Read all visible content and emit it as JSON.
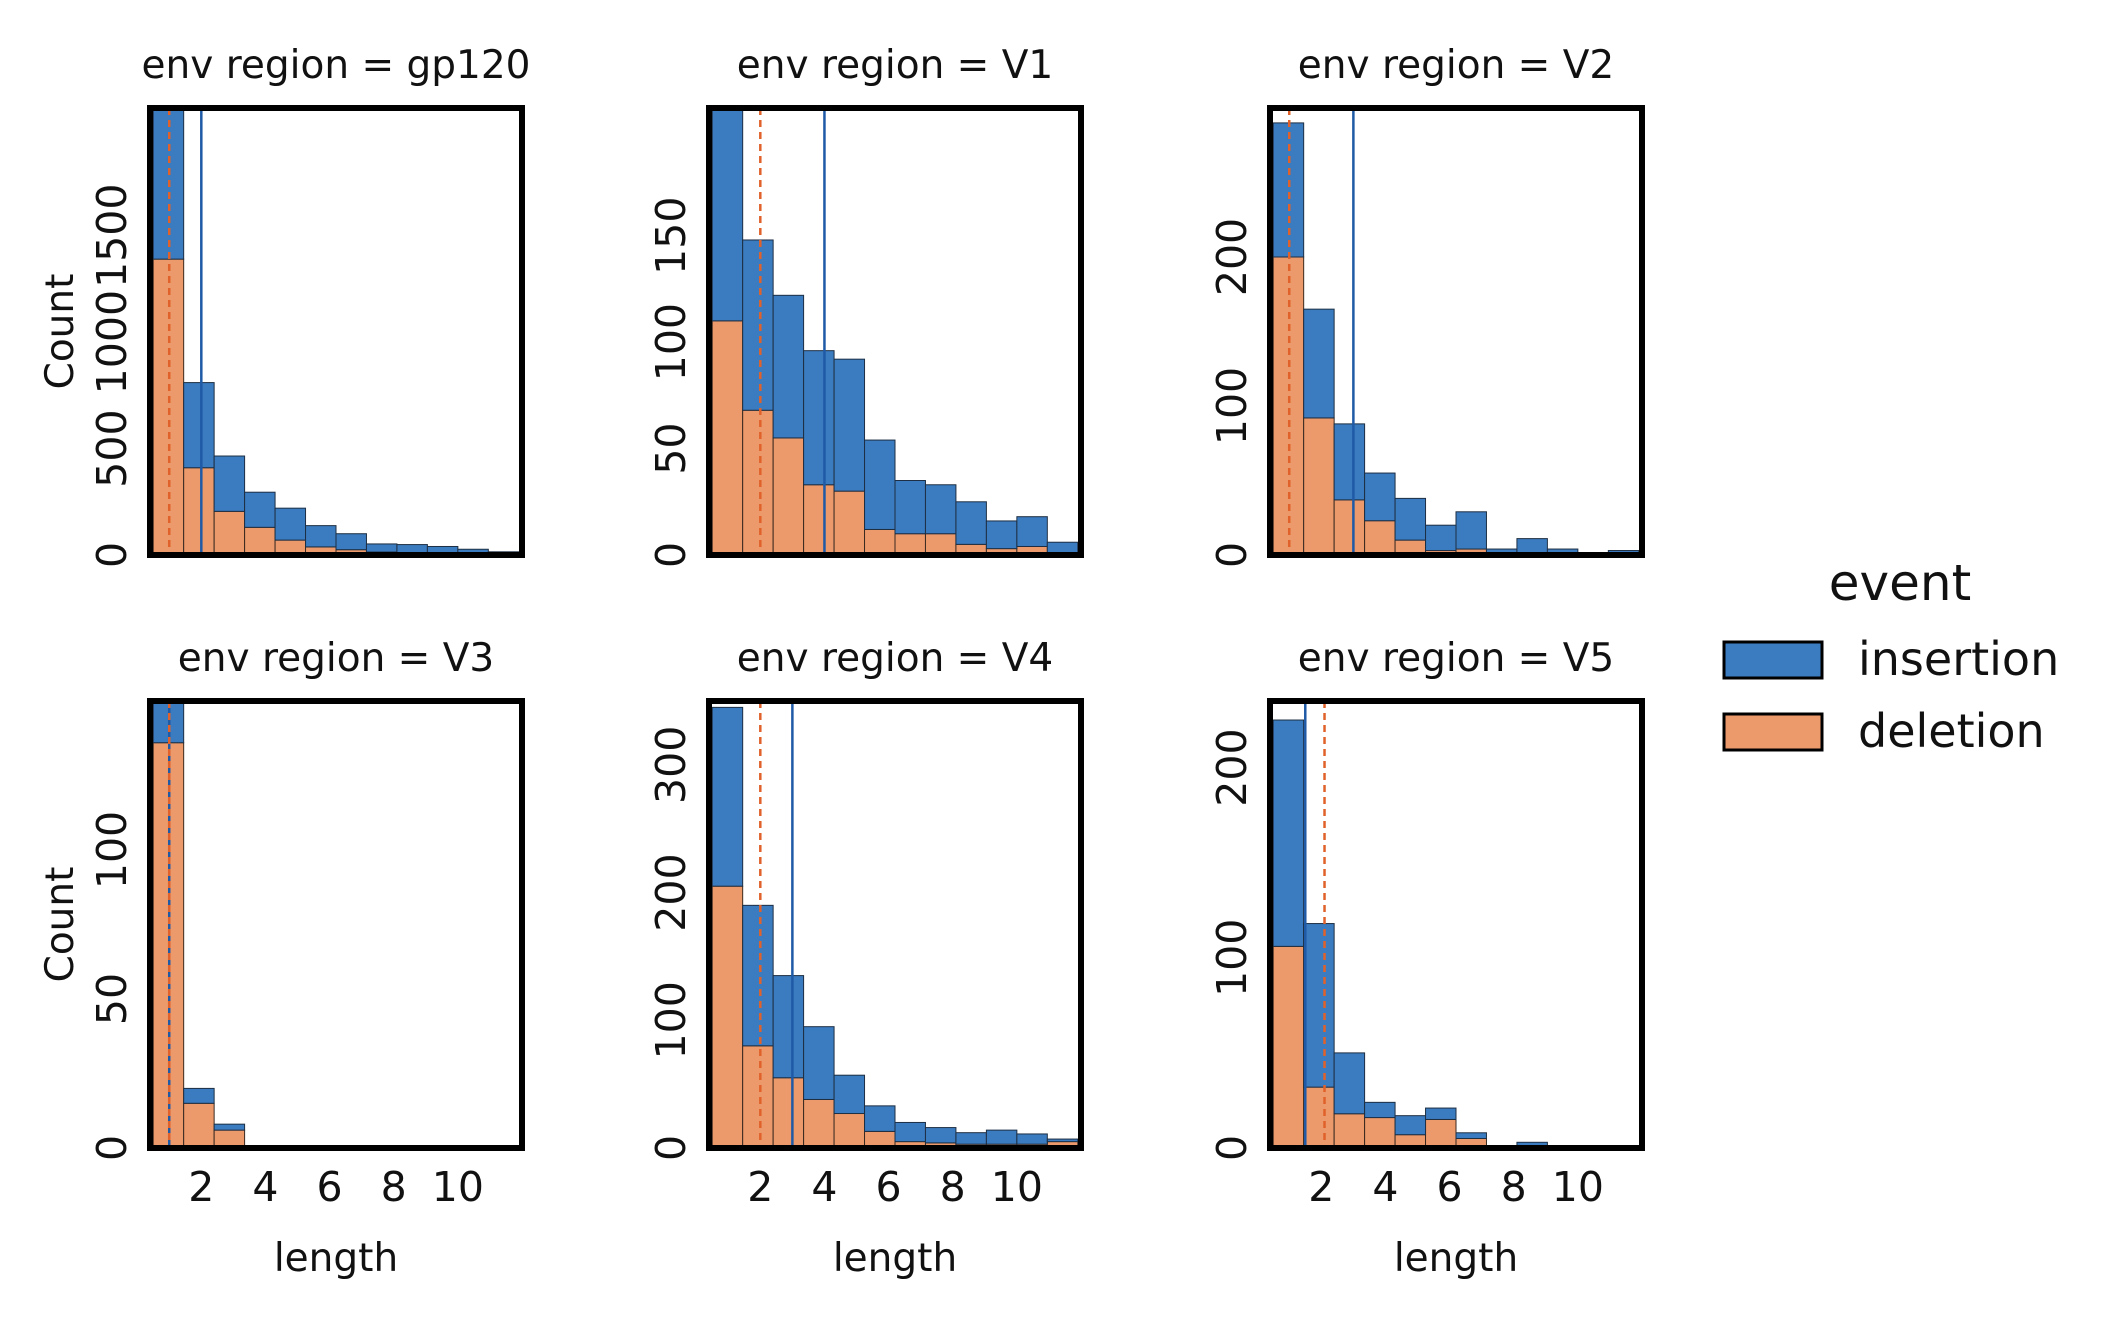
{
  "colors": {
    "insertion": "#3b7bbf",
    "deletion": "#ec9a6c",
    "insertion_line": "#1f5aa6",
    "deletion_line": "#e0622a",
    "frame": "#000000"
  },
  "legend": {
    "title": "event",
    "items": [
      {
        "label": "insertion",
        "color_key": "insertion"
      },
      {
        "label": "deletion",
        "color_key": "deletion"
      }
    ],
    "placement": "right"
  },
  "chart_data": [
    {
      "type": "bar",
      "stacking": "stacked-histogram",
      "title": "env region = gp120",
      "xlabel": "",
      "ylabel": "Count",
      "xlim": [
        0.4,
        12.0
      ],
      "ylim": [
        0,
        2100
      ],
      "xticks": [],
      "yticks": [
        0,
        500,
        1000,
        1500
      ],
      "bin_edges": [
        0.5,
        1.45,
        2.4,
        3.35,
        4.3,
        5.25,
        6.2,
        7.15,
        8.1,
        9.05,
        10.0,
        10.95,
        11.9
      ],
      "series": [
        {
          "name": "deletion",
          "values": [
            1390,
            410,
            205,
            130,
            70,
            38,
            25,
            14,
            9,
            6,
            3,
            2
          ]
        },
        {
          "name": "insertion",
          "values": [
            710,
            400,
            260,
            165,
            150,
            100,
            75,
            38,
            40,
            34,
            24,
            13
          ]
        }
      ],
      "median_lines": {
        "insertion": 2.0,
        "deletion": 1.0
      }
    },
    {
      "type": "bar",
      "stacking": "stacked-histogram",
      "title": "env region = V1",
      "xlabel": "",
      "ylabel": "",
      "xlim": [
        0.4,
        12.0
      ],
      "ylim": [
        0,
        210
      ],
      "xticks": [],
      "yticks": [
        0,
        50,
        100,
        150
      ],
      "bin_edges": [
        0.5,
        1.45,
        2.4,
        3.35,
        4.3,
        5.25,
        6.2,
        7.15,
        8.1,
        9.05,
        10.0,
        10.95,
        11.9
      ],
      "series": [
        {
          "name": "deletion",
          "values": [
            110,
            68,
            55,
            33,
            30,
            12,
            10,
            10,
            5,
            3,
            4,
            1
          ]
        },
        {
          "name": "insertion",
          "values": [
            100,
            80,
            67,
            63,
            62,
            42,
            25,
            23,
            20,
            13,
            14,
            5
          ]
        }
      ],
      "median_lines": {
        "insertion": 4.0,
        "deletion": 2.0
      }
    },
    {
      "type": "bar",
      "stacking": "stacked-histogram",
      "title": "env region = V2",
      "xlabel": "",
      "ylabel": "",
      "xlim": [
        0.4,
        12.0
      ],
      "ylim": [
        0,
        300
      ],
      "xticks": [],
      "yticks": [
        0,
        100,
        200
      ],
      "bin_edges": [
        0.5,
        1.45,
        2.4,
        3.35,
        4.3,
        5.25,
        6.2,
        7.15,
        8.1,
        9.05,
        10.0,
        10.95,
        11.9
      ],
      "series": [
        {
          "name": "deletion",
          "values": [
            200,
            92,
            37,
            23,
            10,
            3,
            4,
            1,
            1,
            0,
            1,
            0
          ]
        },
        {
          "name": "insertion",
          "values": [
            90,
            73,
            51,
            32,
            28,
            17,
            25,
            3,
            10,
            4,
            0,
            3
          ]
        }
      ],
      "median_lines": {
        "insertion": 3.0,
        "deletion": 1.0
      }
    },
    {
      "type": "bar",
      "stacking": "stacked-histogram",
      "title": "env region = V3",
      "xlabel": "length",
      "ylabel": "Count",
      "xlim": [
        0.4,
        12.0
      ],
      "ylim": [
        0,
        150
      ],
      "xticks": [
        2,
        4,
        6,
        8,
        10
      ],
      "yticks": [
        0,
        50,
        100
      ],
      "bin_edges": [
        0.5,
        1.45,
        2.4,
        3.35,
        4.3,
        5.25,
        6.2,
        7.15,
        8.1,
        9.05,
        10.0,
        10.95,
        11.9
      ],
      "series": [
        {
          "name": "deletion",
          "values": [
            136,
            15,
            6,
            0,
            0,
            0,
            0,
            0,
            0,
            0,
            0,
            0
          ]
        },
        {
          "name": "insertion",
          "values": [
            14,
            5,
            2,
            0,
            0,
            0,
            0,
            0,
            0,
            0,
            0,
            0
          ]
        }
      ],
      "median_lines": {
        "insertion": 1.0,
        "deletion": 1.0
      }
    },
    {
      "type": "bar",
      "stacking": "stacked-histogram",
      "title": "env region = V4",
      "xlabel": "length",
      "ylabel": "",
      "xlim": [
        0.4,
        12.0
      ],
      "ylim": [
        0,
        350
      ],
      "xticks": [
        2,
        4,
        6,
        8,
        10
      ],
      "yticks": [
        0,
        100,
        200,
        300
      ],
      "bin_edges": [
        0.5,
        1.45,
        2.4,
        3.35,
        4.3,
        5.25,
        6.2,
        7.15,
        8.1,
        9.05,
        10.0,
        10.95,
        11.9
      ],
      "series": [
        {
          "name": "deletion",
          "values": [
            205,
            80,
            55,
            38,
            27,
            13,
            5,
            4,
            3,
            3,
            3,
            5
          ]
        },
        {
          "name": "insertion",
          "values": [
            140,
            110,
            80,
            57,
            30,
            20,
            15,
            12,
            9,
            11,
            8,
            2
          ]
        }
      ],
      "median_lines": {
        "insertion": 3.0,
        "deletion": 2.0
      }
    },
    {
      "type": "bar",
      "stacking": "stacked-histogram",
      "title": "env region = V5",
      "xlabel": "length",
      "ylabel": "",
      "xlim": [
        0.4,
        12.0
      ],
      "ylim": [
        0,
        235
      ],
      "xticks": [
        2,
        4,
        6,
        8,
        10
      ],
      "yticks": [
        0,
        100,
        200
      ],
      "bin_edges": [
        0.5,
        1.45,
        2.4,
        3.35,
        4.3,
        5.25,
        6.2,
        7.15,
        8.1,
        9.05,
        10.0,
        10.95,
        11.9
      ],
      "series": [
        {
          "name": "deletion",
          "values": [
            106,
            32,
            18,
            16,
            7,
            15,
            5,
            0,
            0,
            0,
            0,
            0
          ]
        },
        {
          "name": "insertion",
          "values": [
            119,
            86,
            32,
            8,
            10,
            6,
            3,
            0,
            3,
            0,
            0,
            0
          ]
        }
      ],
      "median_lines": {
        "insertion": 1.5,
        "deletion": 2.1
      }
    }
  ]
}
